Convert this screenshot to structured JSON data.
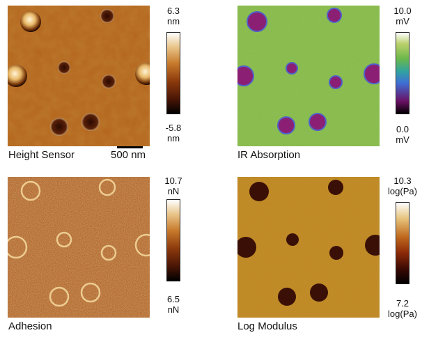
{
  "panels": [
    {
      "caption": "Height Sensor",
      "scale_max": {
        "value": "6.3",
        "unit": "nm"
      },
      "scale_min": {
        "value": "-5.8",
        "unit": "nm"
      },
      "scalebar_label": "500 nm",
      "colors": {
        "background": "#b3661c",
        "colormap": [
          "#000000",
          "#4a1606",
          "#8c3a0c",
          "#c77a2c",
          "#e8c488",
          "#ffffff"
        ]
      }
    },
    {
      "caption": "IR Absorption",
      "scale_max": {
        "value": "10.0",
        "unit": "mV"
      },
      "scale_min": {
        "value": "0.0",
        "unit": "mV"
      },
      "colors": {
        "background": "#84b84a",
        "particle": "#8a1f74",
        "rim": "#5060c8",
        "colormap": [
          "#000000",
          "#6a1063",
          "#3f6fd6",
          "#2fa3a0",
          "#6cb84a",
          "#b9d06a",
          "#ffffff"
        ]
      }
    },
    {
      "caption": "Adhesion",
      "scale_max": {
        "value": "10.7",
        "unit": "nN"
      },
      "scale_min": {
        "value": "6.5",
        "unit": "nN"
      },
      "colors": {
        "background": "#a45418",
        "colormap": [
          "#000000",
          "#4a1606",
          "#8c3a0c",
          "#c77a2c",
          "#e8c488",
          "#ffffff"
        ]
      }
    },
    {
      "caption": "Log Modulus",
      "scale_max": {
        "value": "10.3",
        "unit": "log(Pa)"
      },
      "scale_min": {
        "value": "7.2",
        "unit": "log(Pa)"
      },
      "colors": {
        "background": "#c8901e",
        "particle": "#3a1006",
        "colormap": [
          "#000000",
          "#3a0a04",
          "#8c2a08",
          "#c06a1e",
          "#e6c27a",
          "#ffffff"
        ]
      }
    }
  ]
}
